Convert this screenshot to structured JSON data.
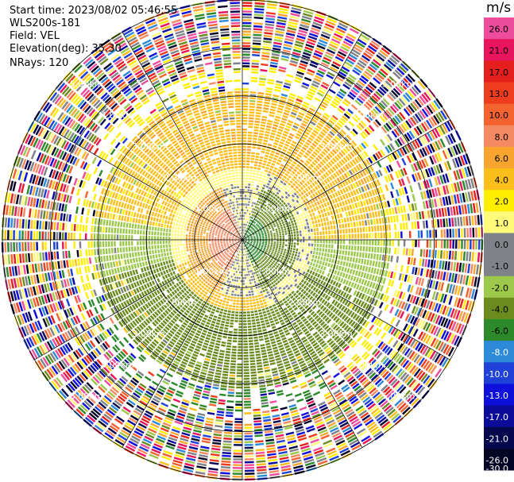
{
  "info": {
    "start_time": "Start time: 2023/08/02 05:46:55",
    "instrument": "WLS200s-181",
    "field": "Field: VEL",
    "elevation": "Elevation(deg): 35.30",
    "nrays": "NRays: 120"
  },
  "chart_data": {
    "type": "heatmap",
    "projection": "polar-ppi",
    "field": "VEL",
    "units": "m/s",
    "n_rays": 120,
    "elevation_deg": 35.3,
    "max_range_km": 5.0,
    "range_ring_labels": [
      "1.00km",
      "2.00km",
      "3.00km",
      "4.00km",
      "5.00km"
    ],
    "colorbar": {
      "label": "m/s",
      "tick_labels": [
        "26.0",
        "21.0",
        "17.0",
        "13.0",
        "10.0",
        "8.0",
        "6.0",
        "4.0",
        "2.0",
        "1.0",
        "0.0",
        "-1.0",
        "-2.0",
        "-4.0",
        "-6.0",
        "-8.0",
        "-10.0",
        "-13.0",
        "-17.0",
        "-21.0",
        "-26.0",
        "-30.0"
      ],
      "colors": [
        "#ee4d9d",
        "#e8145e",
        "#e51e1e",
        "#ee3d1e",
        "#f4622f",
        "#f58a62",
        "#f8a530",
        "#fbbe1a",
        "#ffee00",
        "#fffa7a",
        "#7f8288",
        "#7f8288",
        "#9cc94b",
        "#6c8b1f",
        "#2c8a2b",
        "#2d8ad8",
        "#1f41d8",
        "#0f0fdc",
        "#0b0b99",
        "#07074e",
        "#040424"
      ]
    },
    "structure": {
      "center_positive_sector_deg": [
        205,
        340
      ],
      "center_negative_sector_deg": [
        20,
        160
      ],
      "max_negative": -8.0,
      "max_positive": 8.0
    }
  }
}
